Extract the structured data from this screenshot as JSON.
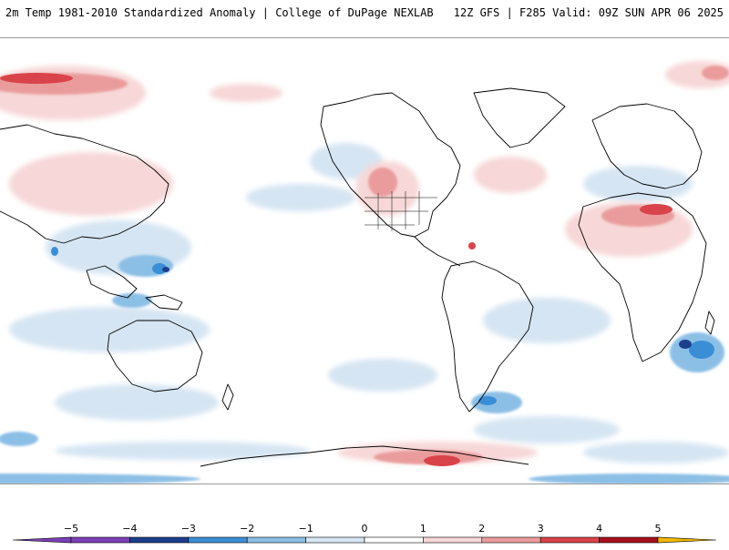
{
  "header": {
    "title_left": "2m Temp 1981-2010 Standardized Anomaly | College of DuPage NEXLAB",
    "title_right": "12Z GFS | F285 Valid: 09Z SUN APR 06 2025"
  },
  "map": {
    "projection": "equirectangular",
    "extent": "global",
    "field": "2m temperature standardized anomaly",
    "coastlines": true,
    "country_borders": true,
    "us_state_borders": true
  },
  "colorbar": {
    "ticks": [
      "−5",
      "−4",
      "−3",
      "−2",
      "−1",
      "0",
      "1",
      "2",
      "3",
      "4",
      "5"
    ],
    "range": [
      -5,
      5
    ],
    "colors": {
      "neg_5": "#7b3fb8",
      "neg_4": "#1c3f8c",
      "neg_3": "#3a8ed6",
      "neg_2": "#8cbfe6",
      "neg_1": "#d5e5f3",
      "zero": "#ffffff",
      "pos_1": "#f7d7d7",
      "pos_2": "#ea9c9c",
      "pos_3": "#d9434a",
      "pos_4": "#a8101e",
      "pos_5": "#f0b800"
    }
  }
}
